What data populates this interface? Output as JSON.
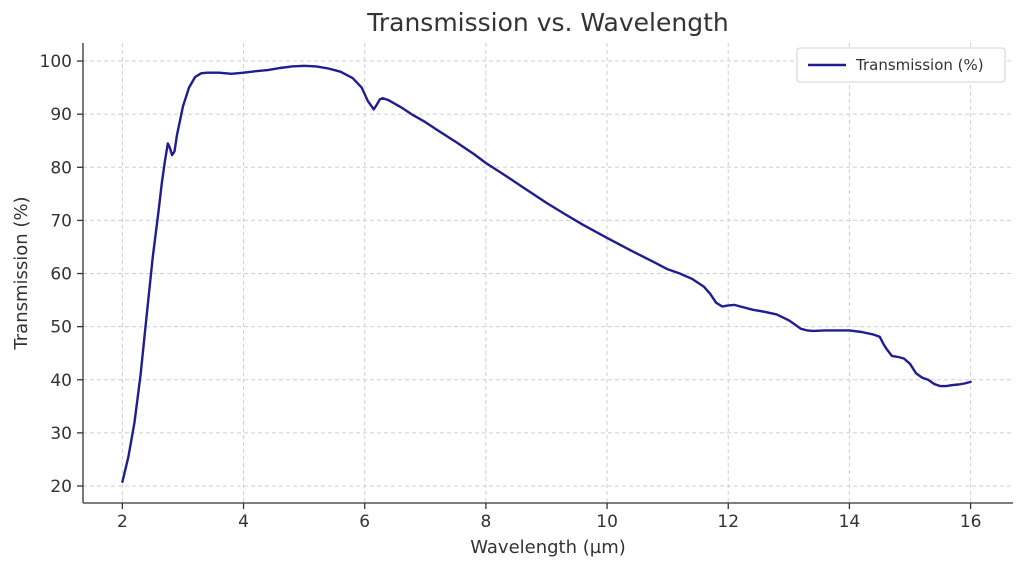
{
  "chart_data": {
    "type": "line",
    "title": "Transmission vs. Wavelength",
    "xlabel": "Wavelength (µm)",
    "ylabel": "Transmission (%)",
    "xlim": [
      1.35,
      16.7
    ],
    "ylim": [
      16.8,
      103.4
    ],
    "xticks": [
      2,
      4,
      6,
      8,
      10,
      12,
      14,
      16
    ],
    "yticks": [
      20,
      30,
      40,
      50,
      60,
      70,
      80,
      90,
      100
    ],
    "grid": true,
    "legend_position": "top-right",
    "line_color": "#1f1d8f",
    "series": [
      {
        "name": "Transmission (%)",
        "x": [
          2.0,
          2.1,
          2.2,
          2.3,
          2.4,
          2.5,
          2.6,
          2.65,
          2.7,
          2.75,
          2.78,
          2.82,
          2.86,
          2.9,
          3.0,
          3.1,
          3.2,
          3.3,
          3.4,
          3.6,
          3.8,
          4.0,
          4.2,
          4.4,
          4.6,
          4.8,
          5.0,
          5.2,
          5.4,
          5.6,
          5.8,
          5.95,
          6.05,
          6.15,
          6.2,
          6.25,
          6.3,
          6.4,
          6.6,
          6.8,
          7.0,
          7.2,
          7.5,
          7.8,
          8.0,
          8.3,
          8.6,
          9.0,
          9.3,
          9.6,
          10.0,
          10.4,
          10.8,
          11.0,
          11.2,
          11.4,
          11.6,
          11.7,
          11.8,
          11.9,
          12.0,
          12.1,
          12.2,
          12.4,
          12.6,
          12.8,
          13.0,
          13.1,
          13.2,
          13.3,
          13.4,
          13.6,
          13.8,
          14.0,
          14.2,
          14.4,
          14.5,
          14.55,
          14.6,
          14.7,
          14.8,
          14.9,
          15.0,
          15.1,
          15.2,
          15.3,
          15.4,
          15.5,
          15.6,
          15.7,
          15.8,
          15.9,
          16.0
        ],
        "y": [
          20.8,
          25.5,
          32.0,
          41.0,
          52.0,
          63.0,
          72.0,
          77.0,
          81.0,
          84.5,
          83.8,
          82.3,
          83.0,
          86.0,
          91.5,
          95.0,
          97.0,
          97.7,
          97.8,
          97.8,
          97.6,
          97.8,
          98.1,
          98.3,
          98.7,
          99.0,
          99.1,
          99.0,
          98.6,
          98.0,
          96.8,
          95.0,
          92.5,
          90.9,
          91.8,
          92.8,
          93.0,
          92.6,
          91.3,
          89.8,
          88.5,
          87.0,
          84.8,
          82.5,
          80.8,
          78.6,
          76.3,
          73.3,
          71.2,
          69.2,
          66.7,
          64.3,
          62.0,
          60.8,
          60.0,
          59.0,
          57.5,
          56.2,
          54.5,
          53.8,
          54.0,
          54.1,
          53.8,
          53.2,
          52.8,
          52.3,
          51.2,
          50.4,
          49.6,
          49.3,
          49.2,
          49.3,
          49.3,
          49.3,
          49.0,
          48.5,
          48.1,
          47.0,
          46.0,
          44.5,
          44.3,
          44.0,
          43.0,
          41.2,
          40.4,
          40.0,
          39.2,
          38.8,
          38.8,
          39.0,
          39.1,
          39.3,
          39.6
        ]
      }
    ]
  }
}
